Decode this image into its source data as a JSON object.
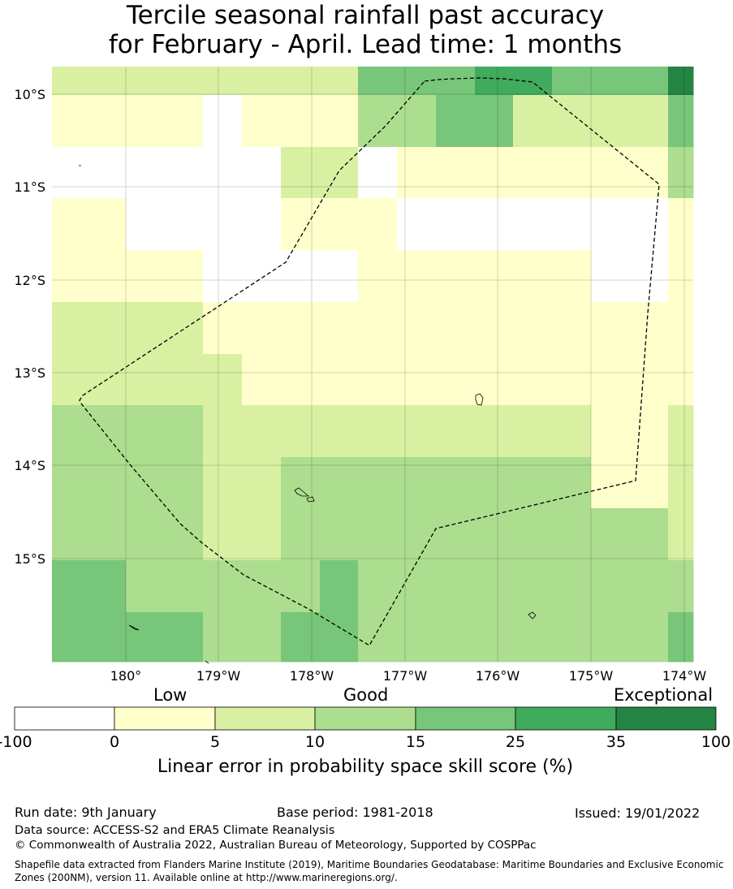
{
  "title": {
    "line1": "Tercile seasonal rainfall past accuracy",
    "line2": "for February - April. Lead time: 1 months"
  },
  "map": {
    "lat_labels": [
      "10°S",
      "11°S",
      "12°S",
      "13°S",
      "14°S",
      "15°S"
    ],
    "lon_labels": [
      "180°",
      "179°W",
      "178°W",
      "177°W",
      "176°W",
      "175°W",
      "174°W"
    ],
    "grid_rows": [
      [
        2,
        2,
        2,
        2,
        2,
        2,
        2,
        2,
        4,
        4,
        4,
        5,
        5,
        4,
        4,
        4,
        6
      ],
      [
        1,
        1,
        0,
        1,
        1,
        1,
        3,
        3,
        4,
        4,
        2,
        2,
        4
      ],
      [
        0,
        0,
        0,
        2,
        2,
        0,
        1,
        1,
        1,
        1,
        1,
        3
      ],
      [
        1,
        0,
        0,
        0,
        1,
        1,
        0,
        0,
        0,
        0,
        0,
        1
      ],
      [
        1,
        1,
        0,
        0,
        0,
        0,
        1,
        1,
        1,
        1,
        0,
        1
      ],
      [
        2,
        2,
        1,
        1,
        1,
        1,
        1,
        1,
        1,
        1,
        1,
        1
      ],
      [
        2,
        2,
        2,
        1,
        1,
        1,
        1,
        1,
        1,
        1,
        1,
        1
      ],
      [
        3,
        3,
        2,
        2,
        2,
        2,
        2,
        2,
        2,
        2,
        1,
        2
      ],
      [
        3,
        3,
        2,
        2,
        3,
        3,
        3,
        3,
        3,
        3,
        1,
        2
      ],
      [
        3,
        3,
        2,
        2,
        3,
        3,
        3,
        3,
        3,
        3,
        3,
        2
      ],
      [
        4,
        3,
        3,
        3,
        3,
        4,
        3,
        3,
        3,
        3,
        3,
        3
      ],
      [
        4,
        4,
        3,
        3,
        4,
        4,
        3,
        3,
        3,
        3,
        3,
        4
      ]
    ]
  },
  "colorbar": {
    "category_labels": [
      "Low",
      "Good",
      "Exceptional"
    ],
    "ticks": [
      "-100",
      "0",
      "5",
      "10",
      "15",
      "25",
      "35",
      "100"
    ],
    "colors": [
      "#ffffff",
      "#ffffcc",
      "#d9f0a3",
      "#addd8e",
      "#78c679",
      "#41ab5d",
      "#238443"
    ],
    "caption": "Linear error in probability space skill score (%)"
  },
  "footer": {
    "run_date": "Run date: 9th January",
    "base_period": "Base period: 1981-2018",
    "issued": "Issued: 19/01/2022",
    "data_source": "Data source: ACCESS-S2 and ERA5 Climate Reanalysis",
    "copyright": "© Commonwealth of Australia 2022, Australian Bureau of Meteorology, Supported by COSPPac",
    "shapefile_note": "Shapefile data extracted from Flanders Marine Institute (2019), Maritime Boundaries Geodatabase: Maritime Boundaries and Exclusive Economic Zones (200NM), version 11. Available online at http://www.marineregions.org/."
  }
}
